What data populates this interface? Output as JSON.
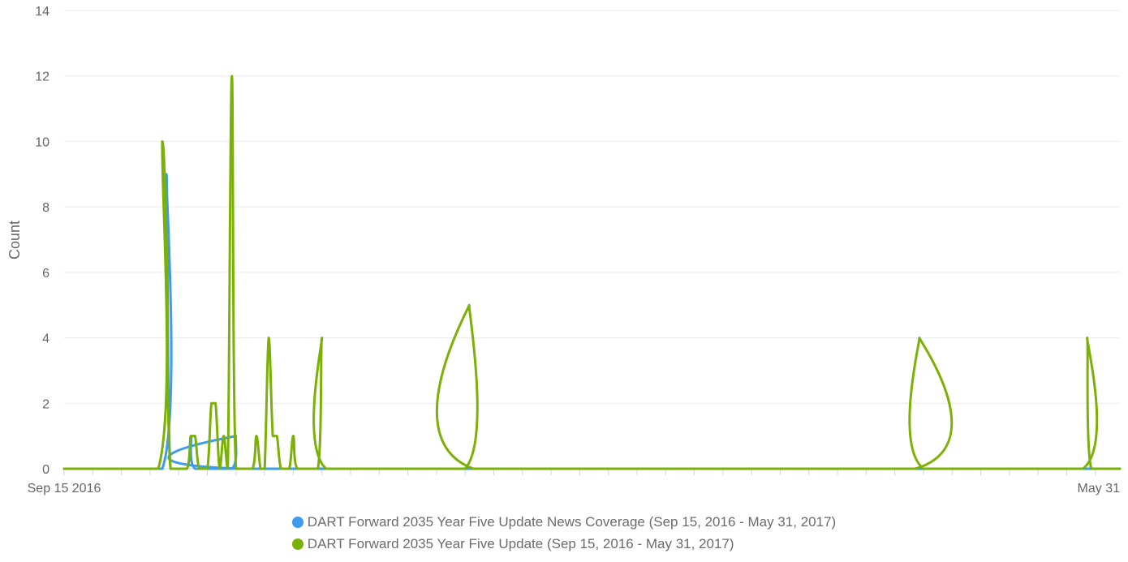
{
  "chart_data": {
    "type": "line",
    "ylabel": "Count",
    "xlabel": "",
    "ylim": [
      0,
      14
    ],
    "yticks": [
      0,
      2,
      4,
      6,
      8,
      10,
      12,
      14
    ],
    "xlim": [
      "2016-09-15",
      "2017-05-31"
    ],
    "xtick_labels": [
      {
        "date": "2016-09-15",
        "label": "Sep 15 2016"
      },
      {
        "date": "2017-05-31",
        "label": "May 31"
      }
    ],
    "grid": true,
    "legend_position": "bottom-center",
    "series": [
      {
        "name": "DART Forward 2035 Year Five Update News Coverage (Sep 15, 2016 - May 31, 2017)",
        "color": "#3d9bf0",
        "points": [
          [
            "2016-09-15",
            0
          ],
          [
            "2016-10-09",
            0
          ],
          [
            "2016-10-10",
            9
          ],
          [
            "2016-10-11",
            0
          ],
          [
            "2016-10-15",
            0
          ],
          [
            "2016-10-16",
            1
          ],
          [
            "2016-10-17",
            0
          ],
          [
            "2016-10-26",
            0
          ],
          [
            "2016-10-27",
            1
          ],
          [
            "2016-10-28",
            0
          ],
          [
            "2017-05-31",
            0
          ]
        ]
      },
      {
        "name": "DART Forward 2035 Year Five Update (Sep 15, 2016 - May 31, 2017)",
        "color": "#7bb006",
        "points": [
          [
            "2016-09-15",
            0
          ],
          [
            "2016-10-08",
            0
          ],
          [
            "2016-10-09",
            10
          ],
          [
            "2016-10-10",
            7
          ],
          [
            "2016-10-11",
            0
          ],
          [
            "2016-10-15",
            0
          ],
          [
            "2016-10-16",
            1
          ],
          [
            "2016-10-17",
            1
          ],
          [
            "2016-10-18",
            0
          ],
          [
            "2016-10-20",
            0
          ],
          [
            "2016-10-21",
            2
          ],
          [
            "2016-10-22",
            2
          ],
          [
            "2016-10-23",
            0
          ],
          [
            "2016-10-24",
            1
          ],
          [
            "2016-10-25",
            0
          ],
          [
            "2016-10-26",
            12
          ],
          [
            "2016-10-27",
            0
          ],
          [
            "2016-10-31",
            0
          ],
          [
            "2016-11-01",
            1
          ],
          [
            "2016-11-02",
            0
          ],
          [
            "2016-11-03",
            0
          ],
          [
            "2016-11-04",
            4
          ],
          [
            "2016-11-05",
            1
          ],
          [
            "2016-11-06",
            1
          ],
          [
            "2016-11-07",
            0
          ],
          [
            "2016-11-09",
            0
          ],
          [
            "2016-11-10",
            1
          ],
          [
            "2016-11-11",
            0
          ],
          [
            "2016-11-16",
            0
          ],
          [
            "2016-11-17",
            4
          ],
          [
            "2016-11-18",
            0
          ],
          [
            "2016-12-22",
            0
          ],
          [
            "2016-12-23",
            5
          ],
          [
            "2016-12-24",
            0
          ],
          [
            "2017-04-11",
            0
          ],
          [
            "2017-04-12",
            4
          ],
          [
            "2017-04-13",
            0
          ],
          [
            "2017-05-22",
            0
          ],
          [
            "2017-05-23",
            4
          ],
          [
            "2017-05-24",
            0
          ],
          [
            "2017-05-31",
            0
          ]
        ]
      }
    ]
  }
}
